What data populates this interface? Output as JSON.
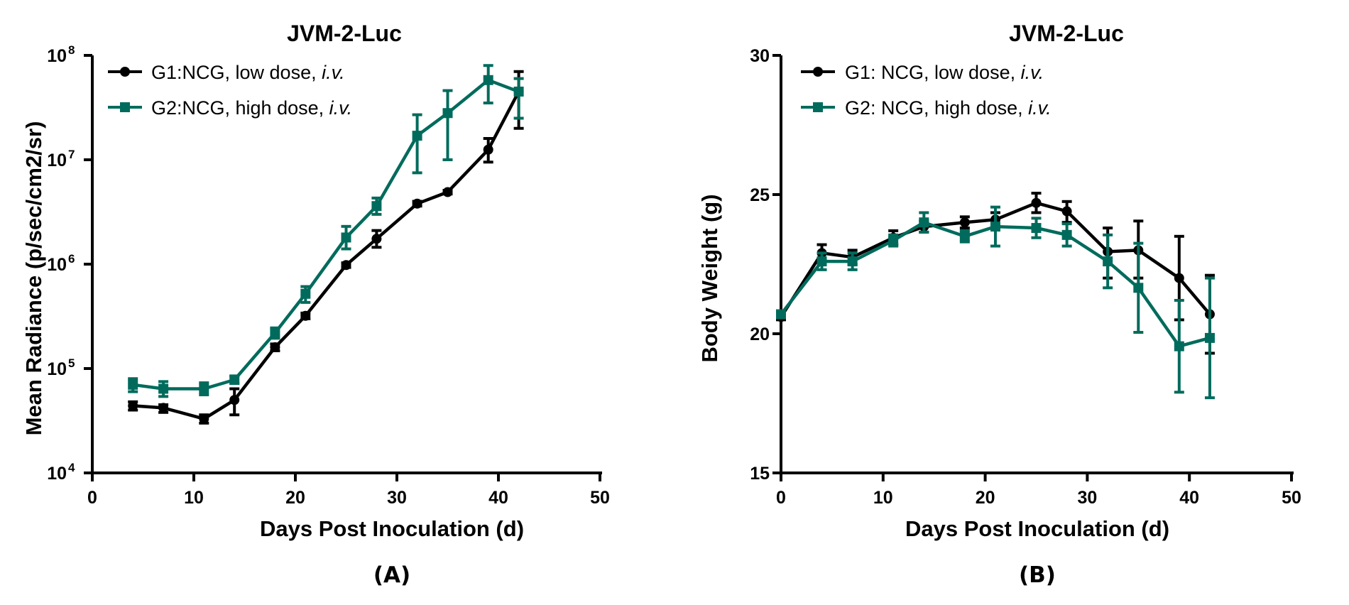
{
  "colors": {
    "g1": "#000000",
    "g2": "#006b5c"
  },
  "chart_data": [
    {
      "id": "A",
      "type": "line",
      "panel_label": "(A)",
      "title": "JVM-2-Luc",
      "xlabel": "Days Post Inoculation (d)",
      "ylabel": "Mean Radiance (p/sec/cm2/sr)",
      "xlim": [
        0,
        50
      ],
      "ylim": [
        10000,
        100000000
      ],
      "yscale": "log",
      "xticks": [
        0,
        10,
        20,
        30,
        40,
        50
      ],
      "xtick_labels": [
        "0",
        "10",
        "20",
        "30",
        "40",
        "50"
      ],
      "yticks": [
        10000,
        100000,
        1000000,
        10000000,
        100000000
      ],
      "ytick_base": [
        "10",
        "10",
        "10",
        "10",
        "10"
      ],
      "ytick_exp": [
        "4",
        "5",
        "6",
        "7",
        "8"
      ],
      "legend_position": "top-left",
      "series": [
        {
          "key": "g1",
          "name_parts": [
            "G1:NCG, low dose, ",
            "i.v."
          ],
          "marker": "circle",
          "x": [
            4,
            7,
            11,
            14,
            18,
            21,
            25,
            28,
            32,
            35,
            39,
            42
          ],
          "y": [
            44000,
            42000,
            33000,
            50000,
            160000,
            320000,
            980000,
            1750000,
            3800000,
            4900000,
            12500000,
            45000000
          ],
          "err_low": [
            40000,
            38000,
            30000,
            36000,
            148000,
            300000,
            930000,
            1450000,
            3600000,
            4700000,
            9500000,
            20000000
          ],
          "err_high": [
            48000,
            45000,
            36000,
            64000,
            172000,
            340000,
            1030000,
            2100000,
            4000000,
            5100000,
            16000000,
            70000000
          ]
        },
        {
          "key": "g2",
          "name_parts": [
            "G2:NCG, high dose, ",
            "i.v."
          ],
          "marker": "square",
          "x": [
            4,
            7,
            11,
            14,
            18,
            21,
            25,
            28,
            32,
            35,
            39,
            42
          ],
          "y": [
            70000,
            64000,
            64000,
            78000,
            220000,
            520000,
            1800000,
            3600000,
            17000000,
            28000000,
            58000000,
            45000000
          ],
          "err_low": [
            60000,
            54000,
            56000,
            72000,
            195000,
            430000,
            1400000,
            3000000,
            7500000,
            10000000,
            35000000,
            25000000
          ],
          "err_high": [
            80000,
            75000,
            73000,
            85000,
            245000,
            610000,
            2300000,
            4300000,
            27000000,
            46000000,
            80000000,
            60000000
          ]
        }
      ]
    },
    {
      "id": "B",
      "type": "line",
      "panel_label": "(B)",
      "title": "JVM-2-Luc",
      "xlabel": "Days Post Inoculation (d)",
      "ylabel": "Body Weight (g)",
      "xlim": [
        0,
        50
      ],
      "ylim": [
        15,
        30
      ],
      "yscale": "linear",
      "xticks": [
        0,
        10,
        20,
        30,
        40,
        50
      ],
      "xtick_labels": [
        "0",
        "10",
        "20",
        "30",
        "40",
        "50"
      ],
      "yticks": [
        15,
        20,
        25,
        30
      ],
      "ytick_labels": [
        "15",
        "20",
        "25",
        "30"
      ],
      "legend_position": "top-left",
      "series": [
        {
          "key": "g1",
          "name_parts": [
            "G1: NCG, low dose, ",
            "i.v."
          ],
          "marker": "circle",
          "x": [
            0,
            4,
            7,
            11,
            14,
            18,
            21,
            25,
            28,
            32,
            35,
            39,
            42
          ],
          "y": [
            20.6,
            22.9,
            22.75,
            23.45,
            23.85,
            24.0,
            24.1,
            24.7,
            24.4,
            22.95,
            23.0,
            22.0,
            20.7
          ],
          "err_low": [
            20.5,
            22.6,
            22.5,
            23.2,
            23.65,
            23.8,
            23.85,
            24.35,
            24.0,
            22.0,
            22.0,
            20.5,
            19.3
          ],
          "err_high": [
            20.7,
            23.2,
            23.0,
            23.7,
            24.05,
            24.2,
            24.35,
            25.05,
            24.75,
            23.8,
            24.05,
            23.5,
            22.1
          ]
        },
        {
          "key": "g2",
          "name_parts": [
            "G2: NCG, high dose, ",
            "i.v."
          ],
          "marker": "square",
          "x": [
            0,
            4,
            7,
            11,
            14,
            18,
            21,
            25,
            28,
            32,
            35,
            39,
            42
          ],
          "y": [
            20.7,
            22.6,
            22.6,
            23.35,
            24.0,
            23.5,
            23.85,
            23.8,
            23.55,
            22.6,
            21.65,
            19.55,
            19.85
          ],
          "err_low": [
            20.6,
            22.3,
            22.3,
            23.15,
            23.65,
            23.3,
            23.15,
            23.45,
            23.15,
            21.65,
            20.05,
            17.9,
            17.7
          ],
          "err_high": [
            20.8,
            22.9,
            22.9,
            23.55,
            24.35,
            23.7,
            24.55,
            24.15,
            23.95,
            23.55,
            23.25,
            21.2,
            22.0
          ]
        }
      ]
    }
  ]
}
